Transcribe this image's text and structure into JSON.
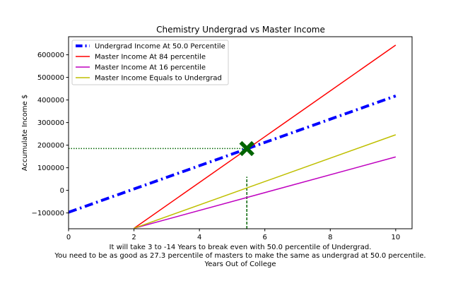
{
  "chart_data": {
    "type": "line",
    "title": "Chemistry Undergrad vs Master Income",
    "ylabel": "Accumulate Income $",
    "xlabel_lines": [
      "It will take 3 to -14 Years to break even with 50.0 percentile of Undergrad.",
      "You need to be as good as 27.3 percentile of masters to make the same as undergrad at 50.0 percentile.",
      "Years Out of College"
    ],
    "xlim": [
      0,
      10.5
    ],
    "ylim": [
      -170000,
      680000
    ],
    "xticks": [
      0,
      2,
      4,
      6,
      8,
      10
    ],
    "xtick_labels": [
      "0",
      "2",
      "4",
      "6",
      "8",
      "10"
    ],
    "yticks": [
      -100000,
      0,
      100000,
      200000,
      300000,
      400000,
      500000,
      600000
    ],
    "ytick_labels": [
      "−100000",
      "0",
      "100000",
      "200000",
      "300000",
      "400000",
      "500000",
      "600000"
    ],
    "legend_position": "upper-left",
    "series": [
      {
        "name": "Undergrad Income At 50.0 Percentile",
        "color": "#0000ff",
        "style": "dashdot",
        "x": [
          0,
          10
        ],
        "y": [
          -97000,
          418000
        ]
      },
      {
        "name": "Master Income At 84 percentile",
        "color": "#ff0000",
        "style": "solid",
        "x": [
          2,
          10
        ],
        "y": [
          -168000,
          643000
        ]
      },
      {
        "name": "Master Income At 16 percentile",
        "color": "#bf00bf",
        "style": "solid",
        "x": [
          2,
          10
        ],
        "y": [
          -168000,
          148000
        ]
      },
      {
        "name": "Master Income Equals to Undergrad",
        "color": "#bfbf00",
        "style": "solid",
        "x": [
          2,
          10
        ],
        "y": [
          -168000,
          246000
        ]
      }
    ],
    "annotations": {
      "breakeven_marker": {
        "x": 5.45,
        "y": 185000,
        "color": "#006400",
        "marker": "X"
      },
      "horizontal_guide": {
        "x": [
          0,
          5.45
        ],
        "y": 185000,
        "color": "#006400",
        "style": "dotted"
      },
      "vertical_guide": {
        "x": 5.45,
        "y": [
          -170000,
          60000
        ],
        "color": "#006400",
        "style": "dashed"
      }
    }
  }
}
